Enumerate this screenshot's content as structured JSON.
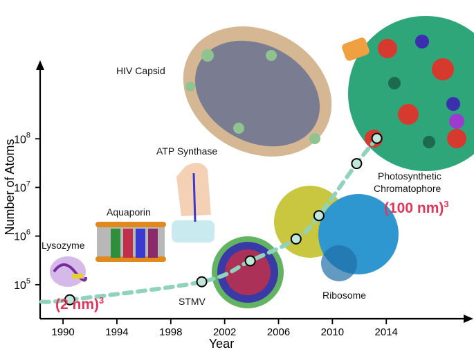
{
  "chart_data": {
    "type": "scatter",
    "xlabel": "Year",
    "ylabel": "Number of Atoms",
    "x_ticks": [
      "1990",
      "1994",
      "1998",
      "2002",
      "2006",
      "2010",
      "2014"
    ],
    "y_ticks": [
      {
        "value": 5,
        "label": "10",
        "exp": "5"
      },
      {
        "value": 6,
        "label": "10",
        "exp": "6"
      },
      {
        "value": 7,
        "label": "10",
        "exp": "7"
      },
      {
        "value": 8,
        "label": "10",
        "exp": "8"
      }
    ],
    "xlim": [
      1988.3,
      2020
    ],
    "ylim": [
      4.3,
      9.5
    ],
    "y_scale": "log10",
    "points": [
      {
        "x": 1990.5,
        "y": 4.69
      },
      {
        "x": 2000.3,
        "y": 5.06
      },
      {
        "x": 2003.9,
        "y": 5.49
      },
      {
        "x": 2007.3,
        "y": 5.94
      },
      {
        "x": 2009.0,
        "y": 6.42
      },
      {
        "x": 2011.8,
        "y": 7.49
      },
      {
        "x": 2013.3,
        "y": 8.01
      }
    ],
    "trend_color": "#8fd3bd",
    "point_fill": "#bfe8da",
    "annotations": {
      "lysozyme": "Lysozyme",
      "aquaporin": "Aquaporin",
      "atp": "ATP Synthase",
      "hiv": "HIV Capsid",
      "stmv": "STMV",
      "ribosome": "Ribosome",
      "photo_line1": "Photosynthetic",
      "photo_line2": "Chromatophore",
      "size_small": "(2 nm)",
      "size_large": "(100 nm)",
      "size_exp": "3"
    }
  }
}
